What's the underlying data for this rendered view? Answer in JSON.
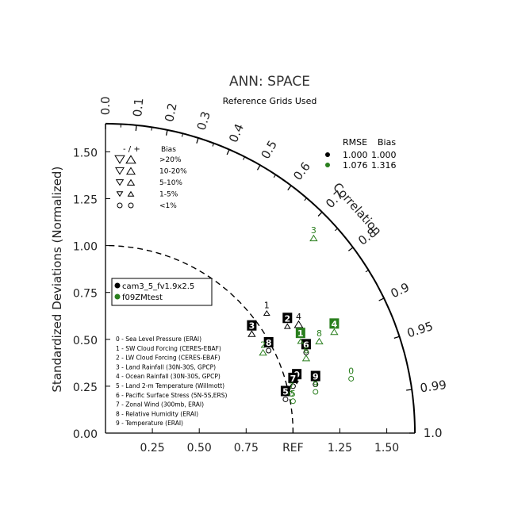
{
  "title": "ANN: SPACE",
  "subtitle": "Reference Grids Used",
  "colors": {
    "case_1": "#000000",
    "case_2": "#2a7f1e",
    "axis": "#000000",
    "arc": "#000000"
  },
  "chart_data": {
    "type": "scatter",
    "diagram": "taylor",
    "ylabel": "Standardized Deviations (Normalized)",
    "corr_label": "Correlation",
    "ref_label": "REF",
    "std_range": [
      0,
      1.65
    ],
    "std_ticks": [
      "0.00",
      "0.25",
      "0.50",
      "0.75",
      "1.00",
      "1.25",
      "1.50"
    ],
    "x_ticks": [
      "0.25",
      "0.50",
      "0.75",
      "1.25",
      "1.50"
    ],
    "corr_ticks": [
      "0.0",
      "0.1",
      "0.2",
      "0.3",
      "0.4",
      "0.5",
      "0.6",
      "0.7",
      "0.8",
      "0.9",
      "0.95",
      "0.99",
      "1.0"
    ],
    "cases": [
      {
        "name": "cam3_5_fv1.9x2.5",
        "rmse": "1.000",
        "bias": "1.000"
      },
      {
        "name": "f09ZMtest",
        "rmse": "1.076",
        "bias": "1.316"
      }
    ],
    "stats_header": {
      "rmse": "RMSE",
      "bias": "Bias"
    },
    "bias_legend": {
      "header": "- / +",
      "header2": "Bias",
      "rows": [
        {
          "label": ">20%",
          "size": 5
        },
        {
          "label": "10-20%",
          "size": 4
        },
        {
          "label": "5-10%",
          "size": 3
        },
        {
          "label": "1-5%",
          "size": 2
        },
        {
          "label": "<1%",
          "size": 0
        }
      ]
    },
    "variables": [
      "0 - Sea Level Pressure (ERAI)",
      "1 - SW Cloud Forcing (CERES-EBAF)",
      "2 - LW Cloud Forcing (CERES-EBAF)",
      "3 - Land Rainfall (30N-30S, GPCP)",
      "4 - Ocean Rainfall (30N-30S, GPCP)",
      "5 - Land 2-m Temperature (Willmott)",
      "6 - Pacific Surface Stress (5N-5S,ERS)",
      "7 - Zonal Wind (300mb, ERAI)",
      "8 - Relative Humidity (ERAI)",
      "9 - Temperature (ERAI)"
    ],
    "points": [
      {
        "case": 0,
        "id": "0",
        "x": 1.02,
        "y": 0.27,
        "sym": "down",
        "size": 0,
        "boxed": true
      },
      {
        "case": 0,
        "id": "1",
        "x": 0.86,
        "y": 0.64,
        "sym": "up",
        "size": 2,
        "boxed": false
      },
      {
        "case": 0,
        "id": "2",
        "x": 0.97,
        "y": 0.57,
        "sym": "up",
        "size": 2,
        "boxed": true
      },
      {
        "case": 0,
        "id": "3",
        "x": 0.78,
        "y": 0.53,
        "sym": "up",
        "size": 3,
        "boxed": true
      },
      {
        "case": 0,
        "id": "4",
        "x": 1.03,
        "y": 0.58,
        "sym": "up",
        "size": 4,
        "boxed": false
      },
      {
        "case": 0,
        "id": "5",
        "x": 0.96,
        "y": 0.18,
        "sym": "circle",
        "size": 0,
        "boxed": true
      },
      {
        "case": 0,
        "id": "6",
        "x": 1.07,
        "y": 0.43,
        "sym": "circle",
        "size": 0,
        "boxed": true
      },
      {
        "case": 0,
        "id": "7",
        "x": 1.0,
        "y": 0.25,
        "sym": "circle",
        "size": 0,
        "boxed": true
      },
      {
        "case": 0,
        "id": "8",
        "x": 0.87,
        "y": 0.44,
        "sym": "circle",
        "size": 0,
        "boxed": true
      },
      {
        "case": 0,
        "id": "9",
        "x": 1.12,
        "y": 0.26,
        "sym": "circle",
        "size": 0,
        "boxed": true
      },
      {
        "case": 1,
        "id": "0",
        "x": 1.31,
        "y": 0.29,
        "sym": "circle",
        "size": 0,
        "boxed": false
      },
      {
        "case": 1,
        "id": "1",
        "x": 1.04,
        "y": 0.49,
        "sym": "up",
        "size": 2,
        "boxed": true
      },
      {
        "case": 1,
        "id": "2",
        "x": 0.84,
        "y": 0.43,
        "sym": "up",
        "size": 3,
        "boxed": false
      },
      {
        "case": 1,
        "id": "3",
        "x": 1.11,
        "y": 1.04,
        "sym": "up",
        "size": 3,
        "boxed": false
      },
      {
        "case": 1,
        "id": "4",
        "x": 1.22,
        "y": 0.54,
        "sym": "up",
        "size": 3,
        "boxed": true
      },
      {
        "case": 1,
        "id": "5",
        "x": 1.0,
        "y": 0.17,
        "sym": "circle",
        "size": 0,
        "boxed": false
      },
      {
        "case": 1,
        "id": "6",
        "x": 1.07,
        "y": 0.4,
        "sym": "up",
        "size": 3,
        "boxed": false
      },
      {
        "case": 1,
        "id": "7",
        "x": 0.99,
        "y": 0.21,
        "sym": "circle",
        "size": 0,
        "boxed": false
      },
      {
        "case": 1,
        "id": "8",
        "x": 1.14,
        "y": 0.49,
        "sym": "up",
        "size": 3,
        "boxed": false
      },
      {
        "case": 1,
        "id": "9",
        "x": 1.12,
        "y": 0.22,
        "sym": "circle",
        "size": 0,
        "boxed": false
      }
    ]
  }
}
